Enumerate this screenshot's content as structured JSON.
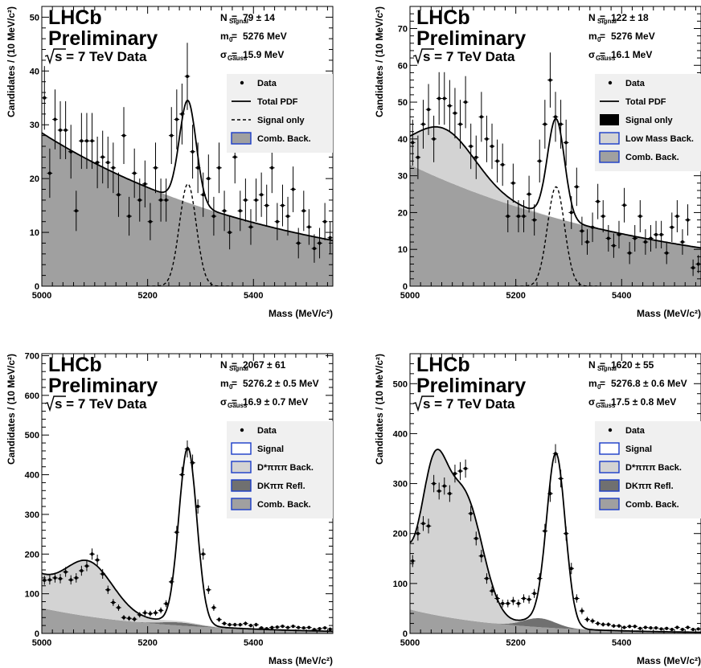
{
  "chart_data": [
    {
      "type": "scatter",
      "experiment": "LHCb",
      "status": "Preliminary",
      "energy_label": "s = 7 TeV Data",
      "xlabel": "Mass (MeV/c²)",
      "ylabel": "Candidates / (10 MeV/c²)",
      "xlim": [
        5000,
        5550
      ],
      "ylim": [
        0,
        52
      ],
      "xticks": [
        "5000",
        "5200",
        "5400"
      ],
      "yticks": [
        "0",
        "10",
        "20",
        "30",
        "40",
        "50"
      ],
      "params": [
        {
          "name": "N",
          "sub": "Signal",
          "value": "79  ± 14"
        },
        {
          "name": "m",
          "sub": "0",
          "value": "5276 MeV"
        },
        {
          "name": "σ",
          "sub": "Gauss",
          "value": "15.9 MeV"
        }
      ],
      "legend": [
        {
          "label": "Data",
          "style": "marker"
        },
        {
          "label": "Total PDF",
          "style": "line"
        },
        {
          "label": "Signal only",
          "style": "dashed"
        },
        {
          "label": "Comb. Back.",
          "style": "box",
          "fill": "#a0a0a0"
        }
      ],
      "model": {
        "signal": {
          "mean": 5276,
          "sigma": 15.9,
          "peak": 19
        },
        "components": [
          {
            "name": "Comb. Back.",
            "type": "exp",
            "a": 28.5,
            "b": 0.0022,
            "fill": "#a0a0a0"
          }
        ]
      },
      "data": {
        "x": [
          5005,
          5015,
          5025,
          5035,
          5045,
          5055,
          5065,
          5075,
          5085,
          5095,
          5105,
          5115,
          5125,
          5135,
          5145,
          5155,
          5165,
          5175,
          5185,
          5195,
          5205,
          5215,
          5225,
          5235,
          5245,
          5255,
          5265,
          5275,
          5285,
          5295,
          5305,
          5315,
          5325,
          5335,
          5345,
          5355,
          5365,
          5375,
          5385,
          5395,
          5405,
          5415,
          5425,
          5435,
          5445,
          5455,
          5465,
          5475,
          5485,
          5495,
          5505,
          5515,
          5525,
          5535,
          5545
        ],
        "y": [
          35,
          21,
          31,
          29,
          29,
          25,
          14,
          27,
          27,
          27,
          23,
          24,
          23,
          22,
          17,
          28,
          13,
          21,
          16,
          19,
          12,
          22,
          16,
          16,
          28,
          31,
          32,
          39,
          25,
          22,
          17,
          20,
          13,
          22,
          14,
          10,
          24,
          14,
          16,
          11,
          16,
          17,
          15,
          22,
          12,
          15,
          13,
          18,
          8,
          14,
          11,
          7,
          8,
          12,
          9
        ]
      }
    },
    {
      "type": "scatter",
      "experiment": "LHCb",
      "status": "Preliminary",
      "energy_label": "s = 7 TeV Data",
      "xlabel": "Mass (MeV/c²)",
      "ylabel": "Candidates / (10 MeV/c²)",
      "xlim": [
        5000,
        5550
      ],
      "ylim": [
        0,
        76
      ],
      "xticks": [
        "5000",
        "5200",
        "5400"
      ],
      "yticks": [
        "0",
        "10",
        "20",
        "30",
        "40",
        "50",
        "60",
        "70"
      ],
      "params": [
        {
          "name": "N",
          "sub": "Signal",
          "value": "122 ± 18"
        },
        {
          "name": "m",
          "sub": "0",
          "value": "5276 MeV"
        },
        {
          "name": "σ",
          "sub": "Gauss",
          "value": "16.1 MeV"
        }
      ],
      "legend": [
        {
          "label": "Data",
          "style": "marker"
        },
        {
          "label": "Total PDF",
          "style": "line"
        },
        {
          "label": "Signal only",
          "style": "hatch"
        },
        {
          "label": "Low Mass Back.",
          "style": "box",
          "fill": "#d3d3d3"
        },
        {
          "label": "Comb. Back.",
          "style": "box",
          "fill": "#a0a0a0"
        }
      ],
      "model": {
        "signal": {
          "mean": 5276,
          "sigma": 16.1,
          "peak": 27
        },
        "components": [
          {
            "name": "Comb. Back.",
            "type": "exp",
            "a": 33,
            "b": 0.0021,
            "fill": "#a0a0a0"
          },
          {
            "name": "Low Mass Back.",
            "type": "gauss",
            "amp": 14,
            "mean": 5065,
            "sigma": 60,
            "fill": "#d3d3d3"
          }
        ]
      },
      "data": {
        "x": [
          5005,
          5015,
          5025,
          5035,
          5045,
          5055,
          5065,
          5075,
          5085,
          5095,
          5105,
          5115,
          5125,
          5135,
          5145,
          5155,
          5165,
          5175,
          5185,
          5195,
          5205,
          5215,
          5225,
          5235,
          5245,
          5255,
          5265,
          5275,
          5285,
          5295,
          5305,
          5315,
          5325,
          5335,
          5345,
          5355,
          5365,
          5375,
          5385,
          5395,
          5405,
          5415,
          5425,
          5435,
          5445,
          5455,
          5465,
          5475,
          5485,
          5495,
          5505,
          5515,
          5525,
          5535,
          5545
        ],
        "y": [
          39,
          35,
          44,
          48,
          40,
          51,
          51,
          49,
          47,
          44,
          50,
          38,
          35,
          46,
          40,
          38,
          34,
          33,
          19,
          28,
          19,
          19,
          25,
          18,
          34,
          44,
          56,
          46,
          44,
          39,
          20,
          27,
          15,
          12,
          16,
          23,
          19,
          13,
          11,
          14,
          22,
          9,
          13,
          19,
          12,
          13,
          14,
          14,
          9,
          16,
          19,
          12,
          18,
          5,
          6
        ]
      }
    },
    {
      "type": "scatter",
      "experiment": "LHCb",
      "status": "Preliminary",
      "energy_label": "s = 7 TeV Data",
      "xlabel": "Mass (MeV/c²)",
      "ylabel": "Candidates / (10 MeV/c²)",
      "xlim": [
        5000,
        5550
      ],
      "ylim": [
        0,
        705
      ],
      "xticks": [
        "5000",
        "5200",
        "5400"
      ],
      "yticks": [
        "0",
        "100",
        "200",
        "300",
        "400",
        "500",
        "600",
        "700"
      ],
      "params": [
        {
          "name": "N",
          "sub": "Signal",
          "value": "2067 ± 61"
        },
        {
          "name": "m",
          "sub": "0",
          "value": "5276.2 ± 0.5 MeV"
        },
        {
          "name": "σ",
          "sub": "Gauss",
          "value": "16.9  ± 0.7 MeV"
        }
      ],
      "legend": [
        {
          "label": "Data",
          "style": "marker"
        },
        {
          "label": "Signal",
          "style": "box",
          "fill": "#ffffff"
        },
        {
          "label": "D*πππ Back.",
          "style": "box",
          "fill": "#d3d3d3"
        },
        {
          "label": "DKππ Refl.",
          "style": "box",
          "fill": "#707070"
        },
        {
          "label": "Comb. Back.",
          "style": "box",
          "fill": "#a0a0a0"
        }
      ],
      "model": {
        "signal": {
          "mean": 5276,
          "sigma": 16.9,
          "peak": 440
        },
        "components": [
          {
            "name": "Comb. Back.",
            "type": "exp",
            "a": 64,
            "b": 0.0045,
            "fill": "#a0a0a0"
          },
          {
            "name": "DKππ Refl.",
            "type": "gauss",
            "amp": 8,
            "mean": 5260,
            "sigma": 35,
            "fill": "#707070"
          },
          {
            "name": "D*πππ Back.",
            "type": "gauss",
            "amp": 115,
            "mean": 5090,
            "sigma": 45,
            "fill": "#d3d3d3",
            "extra": {
              "type": "exp",
              "a": 72,
              "b": 0.012
            }
          }
        ]
      },
      "data": {
        "x": [
          5005,
          5015,
          5025,
          5035,
          5045,
          5055,
          5065,
          5075,
          5085,
          5095,
          5105,
          5115,
          5125,
          5135,
          5145,
          5155,
          5165,
          5175,
          5185,
          5195,
          5205,
          5215,
          5225,
          5235,
          5245,
          5255,
          5265,
          5275,
          5285,
          5295,
          5305,
          5315,
          5325,
          5335,
          5345,
          5355,
          5365,
          5375,
          5385,
          5395,
          5405,
          5415,
          5425,
          5435,
          5445,
          5455,
          5465,
          5475,
          5485,
          5495,
          5505,
          5515,
          5525,
          5535,
          5545
        ],
        "y": [
          134,
          135,
          140,
          138,
          155,
          135,
          140,
          158,
          170,
          200,
          185,
          150,
          110,
          78,
          65,
          40,
          38,
          36,
          47,
          52,
          50,
          52,
          58,
          75,
          130,
          255,
          400,
          465,
          430,
          320,
          200,
          110,
          65,
          35,
          25,
          22,
          22,
          22,
          25,
          20,
          22,
          14,
          12,
          15,
          16,
          18,
          15,
          18,
          15,
          14,
          15,
          10,
          12,
          14,
          11
        ]
      }
    },
    {
      "type": "scatter",
      "experiment": "LHCb",
      "status": "Preliminary",
      "energy_label": "s = 7 TeV Data",
      "xlabel": "Mass (MeV/c²)",
      "ylabel": "Candidates / (10 MeV/c²)",
      "xlim": [
        5000,
        5550
      ],
      "ylim": [
        0,
        560
      ],
      "xticks": [
        "5000",
        "5200",
        "5400"
      ],
      "yticks": [
        "0",
        "100",
        "200",
        "300",
        "400",
        "500"
      ],
      "params": [
        {
          "name": "N",
          "sub": "Signal",
          "value": "1620 ± 55"
        },
        {
          "name": "m",
          "sub": "0",
          "value": "5276.8 ± 0.6 MeV"
        },
        {
          "name": "σ",
          "sub": "Gauss",
          "value": "17.5  ± 0.8 MeV"
        }
      ],
      "legend": [
        {
          "label": "Data",
          "style": "marker"
        },
        {
          "label": "Signal",
          "style": "box",
          "fill": "#ffffff"
        },
        {
          "label": "D*πππ Back.",
          "style": "box",
          "fill": "#d3d3d3"
        },
        {
          "label": "DKππ Refl.",
          "style": "box",
          "fill": "#707070"
        },
        {
          "label": "Comb. Back.",
          "style": "box",
          "fill": "#a0a0a0"
        }
      ],
      "model": {
        "signal": {
          "mean": 5276,
          "sigma": 17.5,
          "peak": 340
        },
        "components": [
          {
            "name": "Comb. Back.",
            "type": "exp",
            "a": 48,
            "b": 0.0055,
            "fill": "#a0a0a0"
          },
          {
            "name": "DKππ Refl.",
            "type": "gauss",
            "amp": 18,
            "mean": 5245,
            "sigma": 30,
            "fill": "#707070"
          },
          {
            "name": "D*πππ Back.",
            "type": "double",
            "g1": {
              "amp": 235,
              "mean": 5045,
              "sigma": 24
            },
            "g2": {
              "amp": 245,
              "mean": 5102,
              "sigma": 35
            },
            "fill": "#d3d3d3",
            "extra": {
              "type": "exp",
              "a": 90,
              "b": 0.03
            }
          }
        ]
      },
      "data": {
        "x": [
          5005,
          5015,
          5025,
          5035,
          5045,
          5055,
          5065,
          5075,
          5085,
          5095,
          5105,
          5115,
          5125,
          5135,
          5145,
          5155,
          5165,
          5175,
          5185,
          5195,
          5205,
          5215,
          5225,
          5235,
          5245,
          5255,
          5265,
          5275,
          5285,
          5295,
          5305,
          5315,
          5325,
          5335,
          5345,
          5355,
          5365,
          5375,
          5385,
          5395,
          5405,
          5415,
          5425,
          5435,
          5445,
          5455,
          5465,
          5475,
          5485,
          5495,
          5505,
          5515,
          5525,
          5535,
          5545
        ],
        "y": [
          145,
          200,
          220,
          215,
          300,
          285,
          295,
          280,
          320,
          325,
          330,
          240,
          190,
          155,
          110,
          85,
          70,
          60,
          60,
          65,
          60,
          70,
          68,
          80,
          110,
          205,
          280,
          360,
          310,
          200,
          130,
          70,
          45,
          28,
          25,
          20,
          18,
          18,
          15,
          15,
          12,
          14,
          14,
          10,
          12,
          11,
          11,
          9,
          10,
          8,
          12,
          8,
          12,
          8,
          9
        ]
      }
    }
  ]
}
